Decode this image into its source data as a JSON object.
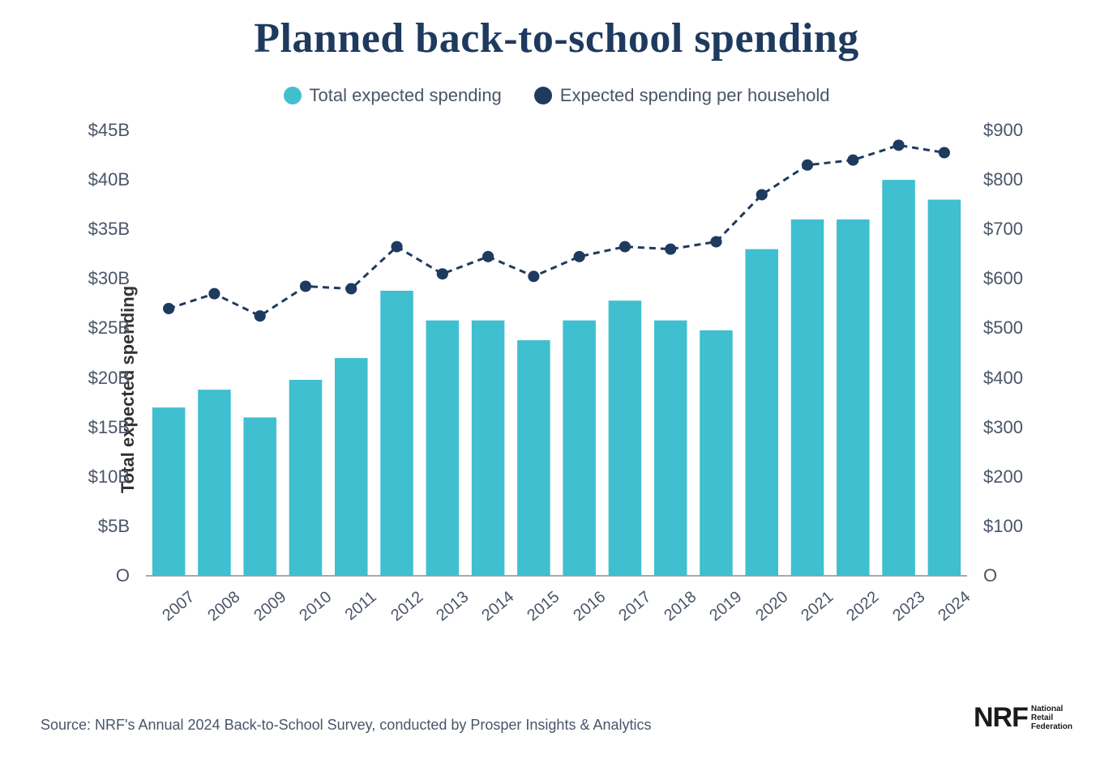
{
  "title": "Planned back-to-school spending",
  "legend": {
    "bar_label": "Total expected spending",
    "line_label": "Expected spending per household"
  },
  "chart": {
    "type": "bar+line",
    "categories": [
      "2007",
      "2008",
      "2009",
      "2010",
      "2011",
      "2012",
      "2013",
      "2014",
      "2015",
      "2016",
      "2017",
      "2018",
      "2019",
      "2020",
      "2021",
      "2022",
      "2023",
      "2024"
    ],
    "bar_values": [
      17.0,
      18.8,
      16.0,
      19.8,
      22.0,
      28.8,
      25.8,
      25.8,
      23.8,
      25.8,
      27.8,
      25.8,
      24.8,
      33.0,
      36.0,
      36.0,
      40.0,
      38.0
    ],
    "line_values": [
      540,
      570,
      525,
      585,
      580,
      665,
      610,
      645,
      605,
      645,
      665,
      660,
      675,
      770,
      830,
      840,
      870,
      855
    ],
    "bar_color": "#3fbfcf",
    "line_color": "#1e3a5f",
    "marker_color": "#1e3a5f",
    "line_width": 3,
    "marker_radius": 7,
    "bar_width_ratio": 0.72,
    "background_color": "#ffffff",
    "axis_color": "#4a5568",
    "y_left": {
      "title": "Total expected spending",
      "min": 0,
      "max": 45,
      "step": 5,
      "labels": [
        "O",
        "$5B",
        "$10B",
        "$15B",
        "$20B",
        "$25B",
        "$30B",
        "$35B",
        "$40B",
        "$45B"
      ]
    },
    "y_right": {
      "title": "Expected spending per household",
      "min": 0,
      "max": 900,
      "step": 100,
      "labels": [
        "O",
        "$100",
        "$200",
        "$300",
        "$400",
        "$500",
        "$600",
        "$700",
        "$800",
        "$900"
      ]
    },
    "title_fontsize": 52,
    "title_color": "#1e3a5f",
    "label_fontsize": 22,
    "tick_fontsize": 22
  },
  "source_text": "Source: NRF's Annual 2024 Back-to-School Survey, conducted by Prosper Insights & Analytics",
  "logo": {
    "main": "NRF",
    "sub_line1": "National",
    "sub_line2": "Retail",
    "sub_line3": "Federation"
  }
}
